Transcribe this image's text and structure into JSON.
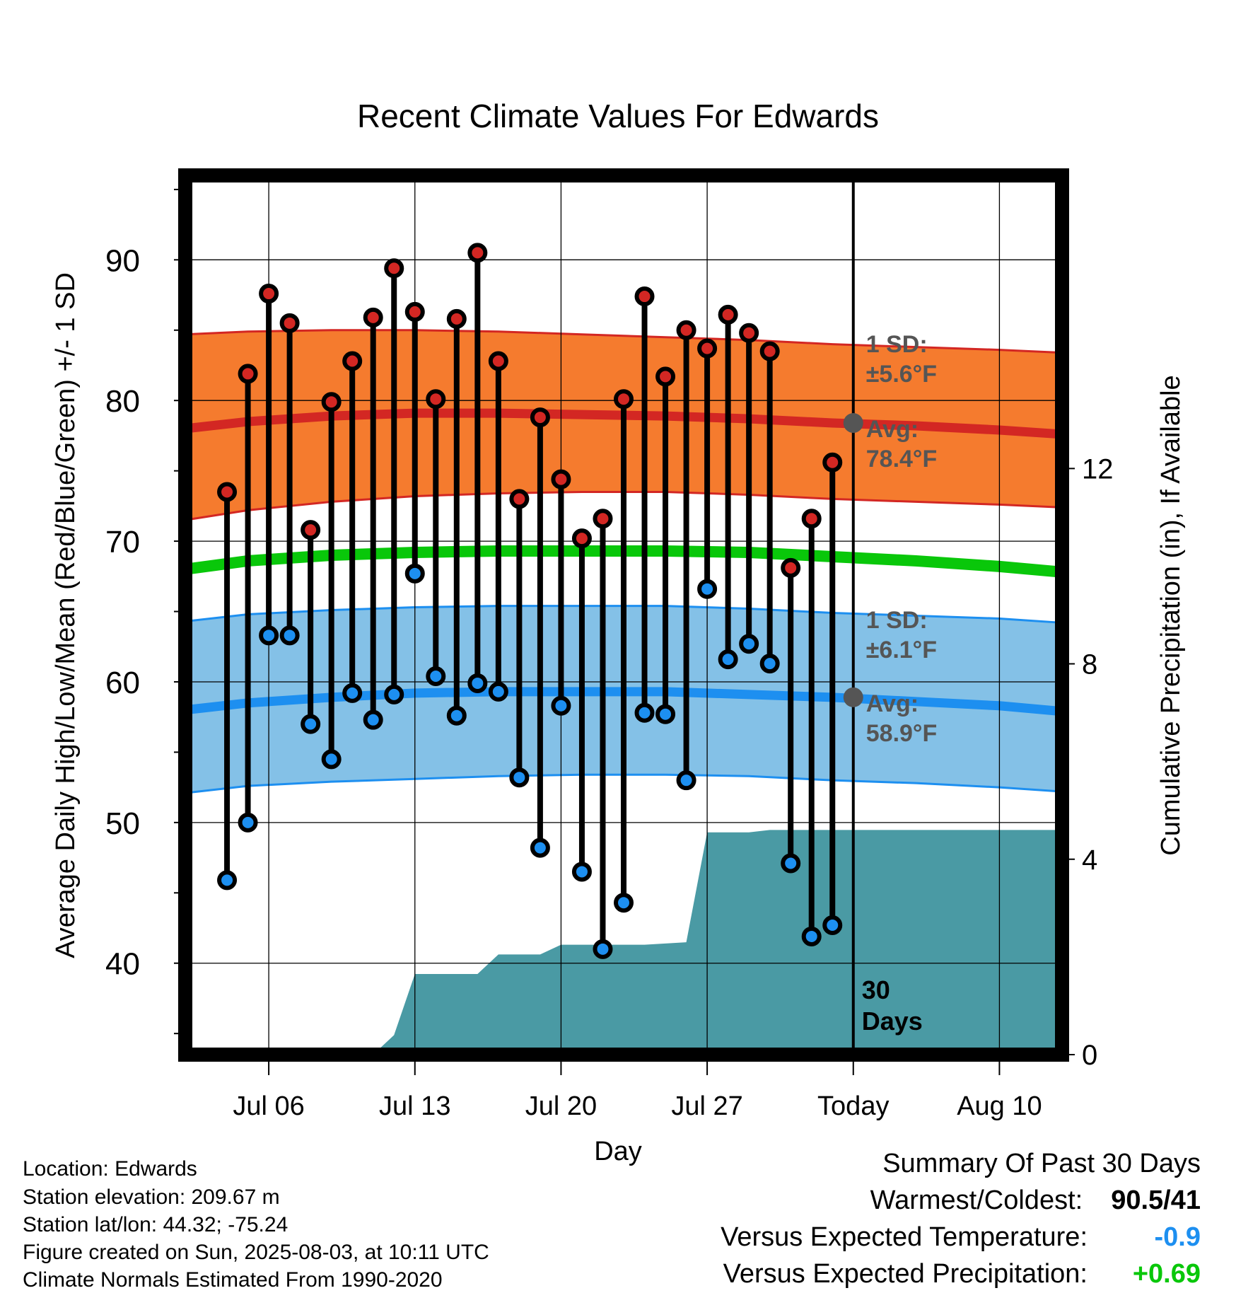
{
  "chart_data": {
    "type": "line",
    "title": "Recent Climate Values For Edwards",
    "xlabel": "Day",
    "ylabel": "Average Daily High/Low/Mean (Red/Blue/Green) +/- 1 SD",
    "ylabel_right": "Cumulative Precipitation (in), If Available",
    "x_tick_labels": [
      "Jul 06",
      "Jul 13",
      "Jul 20",
      "Jul 27",
      "Today",
      "Aug 10"
    ],
    "x_tick_dates": [
      "2025-07-06",
      "2025-07-13",
      "2025-07-20",
      "2025-07-27",
      "2025-08-03",
      "2025-08-10"
    ],
    "xlim": [
      "2025-07-02",
      "2025-08-13"
    ],
    "y_ticks": [
      40,
      50,
      60,
      70,
      80,
      90
    ],
    "ylim": [
      33.5,
      96
    ],
    "y2_ticks": [
      0,
      4,
      8,
      12
    ],
    "y2lim": [
      0,
      18
    ],
    "grid": true,
    "today": "2025-08-03",
    "window_label": [
      "30",
      "Days"
    ],
    "daily": [
      {
        "date": "2025-07-04",
        "high": 73.5,
        "low": 45.9
      },
      {
        "date": "2025-07-05",
        "high": 81.9,
        "low": 50.0
      },
      {
        "date": "2025-07-06",
        "high": 87.6,
        "low": 63.3
      },
      {
        "date": "2025-07-07",
        "high": 85.5,
        "low": 63.3
      },
      {
        "date": "2025-07-08",
        "high": 70.8,
        "low": 57.0
      },
      {
        "date": "2025-07-09",
        "high": 79.9,
        "low": 54.5
      },
      {
        "date": "2025-07-10",
        "high": 82.8,
        "low": 59.2
      },
      {
        "date": "2025-07-11",
        "high": 85.9,
        "low": 57.3
      },
      {
        "date": "2025-07-12",
        "high": 89.4,
        "low": 59.1
      },
      {
        "date": "2025-07-13",
        "high": 86.3,
        "low": 67.7
      },
      {
        "date": "2025-07-14",
        "high": 80.1,
        "low": 60.4
      },
      {
        "date": "2025-07-15",
        "high": 85.8,
        "low": 57.6
      },
      {
        "date": "2025-07-16",
        "high": 90.5,
        "low": 59.9
      },
      {
        "date": "2025-07-17",
        "high": 82.8,
        "low": 59.3
      },
      {
        "date": "2025-07-18",
        "high": 73.0,
        "low": 53.2
      },
      {
        "date": "2025-07-19",
        "high": 78.8,
        "low": 48.2
      },
      {
        "date": "2025-07-20",
        "high": 74.4,
        "low": 58.3
      },
      {
        "date": "2025-07-21",
        "high": 70.2,
        "low": 46.5
      },
      {
        "date": "2025-07-22",
        "high": 71.6,
        "low": 41.0
      },
      {
        "date": "2025-07-23",
        "high": 80.1,
        "low": 44.3
      },
      {
        "date": "2025-07-24",
        "high": 87.4,
        "low": 57.8
      },
      {
        "date": "2025-07-25",
        "high": 81.7,
        "low": 57.7
      },
      {
        "date": "2025-07-26",
        "high": 85.0,
        "low": 53.0
      },
      {
        "date": "2025-07-27",
        "high": 83.7,
        "low": 66.6
      },
      {
        "date": "2025-07-28",
        "high": 86.1,
        "low": 61.6
      },
      {
        "date": "2025-07-29",
        "high": 84.8,
        "low": 62.7
      },
      {
        "date": "2025-07-30",
        "high": 83.5,
        "low": 61.3
      },
      {
        "date": "2025-07-31",
        "high": 68.1,
        "low": 47.1
      },
      {
        "date": "2025-08-01",
        "high": 71.6,
        "low": 41.9
      },
      {
        "date": "2025-08-02",
        "high": 75.6,
        "low": 42.7
      }
    ],
    "normals": {
      "dates": [
        "2025-07-02",
        "2025-07-05",
        "2025-07-09",
        "2025-07-13",
        "2025-07-17",
        "2025-07-21",
        "2025-07-25",
        "2025-07-29",
        "2025-08-02",
        "2025-08-06",
        "2025-08-10",
        "2025-08-13"
      ],
      "avg_high": [
        78.0,
        78.5,
        78.9,
        79.1,
        79.1,
        79.0,
        78.9,
        78.7,
        78.4,
        78.2,
        77.9,
        77.6
      ],
      "high_sd_upper": [
        84.7,
        84.9,
        85.0,
        85.0,
        84.9,
        84.7,
        84.5,
        84.3,
        84.0,
        83.8,
        83.6,
        83.4
      ],
      "high_sd_lower": [
        71.5,
        72.2,
        72.8,
        73.2,
        73.4,
        73.5,
        73.5,
        73.3,
        73.0,
        72.8,
        72.6,
        72.4
      ],
      "avg_mean": [
        68.0,
        68.6,
        69.0,
        69.2,
        69.3,
        69.3,
        69.3,
        69.2,
        68.9,
        68.6,
        68.2,
        67.8
      ],
      "avg_low": [
        58.0,
        58.5,
        58.9,
        59.2,
        59.3,
        59.3,
        59.3,
        59.1,
        58.9,
        58.6,
        58.3,
        57.9
      ],
      "low_sd_upper": [
        64.3,
        64.8,
        65.1,
        65.3,
        65.4,
        65.4,
        65.4,
        65.2,
        64.9,
        64.7,
        64.5,
        64.2
      ],
      "low_sd_lower": [
        52.1,
        52.6,
        52.9,
        53.1,
        53.3,
        53.4,
        53.4,
        53.3,
        53.0,
        52.8,
        52.5,
        52.2
      ]
    },
    "precip_cumulative": {
      "dates": [
        "2025-07-02",
        "2025-07-11",
        "2025-07-12",
        "2025-07-13",
        "2025-07-16",
        "2025-07-17",
        "2025-07-19",
        "2025-07-20",
        "2025-07-24",
        "2025-07-26",
        "2025-07-27",
        "2025-07-29",
        "2025-07-30",
        "2025-08-13"
      ],
      "values": [
        0.0,
        0.0,
        0.4,
        1.65,
        1.65,
        2.05,
        2.05,
        2.25,
        2.25,
        2.3,
        4.55,
        4.55,
        4.6,
        4.6
      ]
    },
    "annotations": {
      "high_sd": [
        "1 SD:",
        "±5.6°F"
      ],
      "high_avg": [
        "Avg:",
        "78.4°F"
      ],
      "low_sd": [
        "1 SD:",
        "±6.1°F"
      ],
      "low_avg": [
        "Avg:",
        "58.9°F"
      ],
      "high_avg_today": 78.4,
      "low_avg_today": 58.9
    },
    "colors": {
      "high_band": "#f57b2e",
      "high_line": "#d32723",
      "mean_line": "#09c70a",
      "low_band": "#84c1e7",
      "low_line": "#1d8ff0",
      "precip": "#4a9aa4",
      "annotation": "#555555"
    }
  },
  "footer": {
    "location": "Location: Edwards",
    "elevation": "Station elevation: 209.67 m",
    "latlon": "Station lat/lon: 44.32; -75.24",
    "created": "Figure created on Sun, 2025-08-03, at 10:11 UTC",
    "normals": "Climate Normals Estimated From 1990-2020"
  },
  "summary": {
    "title": "Summary Of Past 30 Days",
    "warmest_coldest_label": "Warmest/Coldest:",
    "warmest_coldest_value": "90.5/41",
    "temp_label": "Versus Expected Temperature:",
    "temp_value": "-0.9",
    "precip_label": "Versus Expected Precipitation:",
    "precip_value": "+0.69",
    "temp_color": "#1d8ff0",
    "precip_color": "#09c70a"
  }
}
